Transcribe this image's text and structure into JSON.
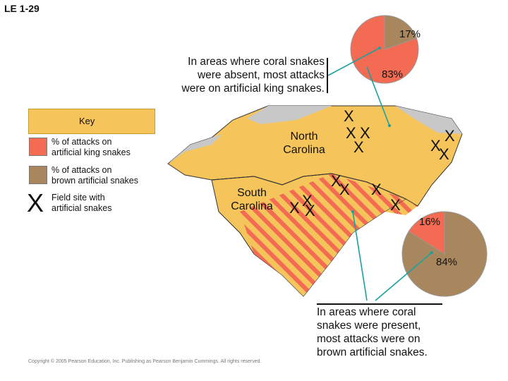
{
  "slide_label": "LE 1-29",
  "top_note": {
    "lines": [
      "In areas where coral snakes",
      "were absent, most attacks",
      "were on artificial king snakes."
    ]
  },
  "bottom_note": {
    "lines": [
      "In areas where coral",
      "snakes were present,",
      "most attacks were on",
      "brown artificial snakes."
    ]
  },
  "key": {
    "title": "Key",
    "king_label_lines": [
      "% of attacks on",
      "artificial king snakes"
    ],
    "brown_label_lines": [
      "% of attacks on",
      "brown artificial snakes"
    ],
    "site_label_lines": [
      "Field site with",
      "artificial snakes"
    ]
  },
  "states": {
    "north": [
      "North",
      "Carolina"
    ],
    "south": [
      "South",
      "Carolina"
    ]
  },
  "pies": {
    "top": {
      "king_pct": 83,
      "brown_pct": 17,
      "king_label": "83%",
      "brown_label": "17%"
    },
    "bottom": {
      "king_pct": 16,
      "brown_pct": 84,
      "king_label": "16%",
      "brown_label": "84%"
    }
  },
  "colors": {
    "king": "#f26b52",
    "brown": "#a9875e",
    "coral_zone": "#f5c45a",
    "coral_stripe": "#f26b52",
    "outside_range": "#c8c8c8",
    "ocean": "#ffffff",
    "connector": "#1aa0a0"
  },
  "copyright": "Copyright © 2005 Pearson Education, Inc. Publishing as Pearson Benjamin Cummings. All rights reserved."
}
